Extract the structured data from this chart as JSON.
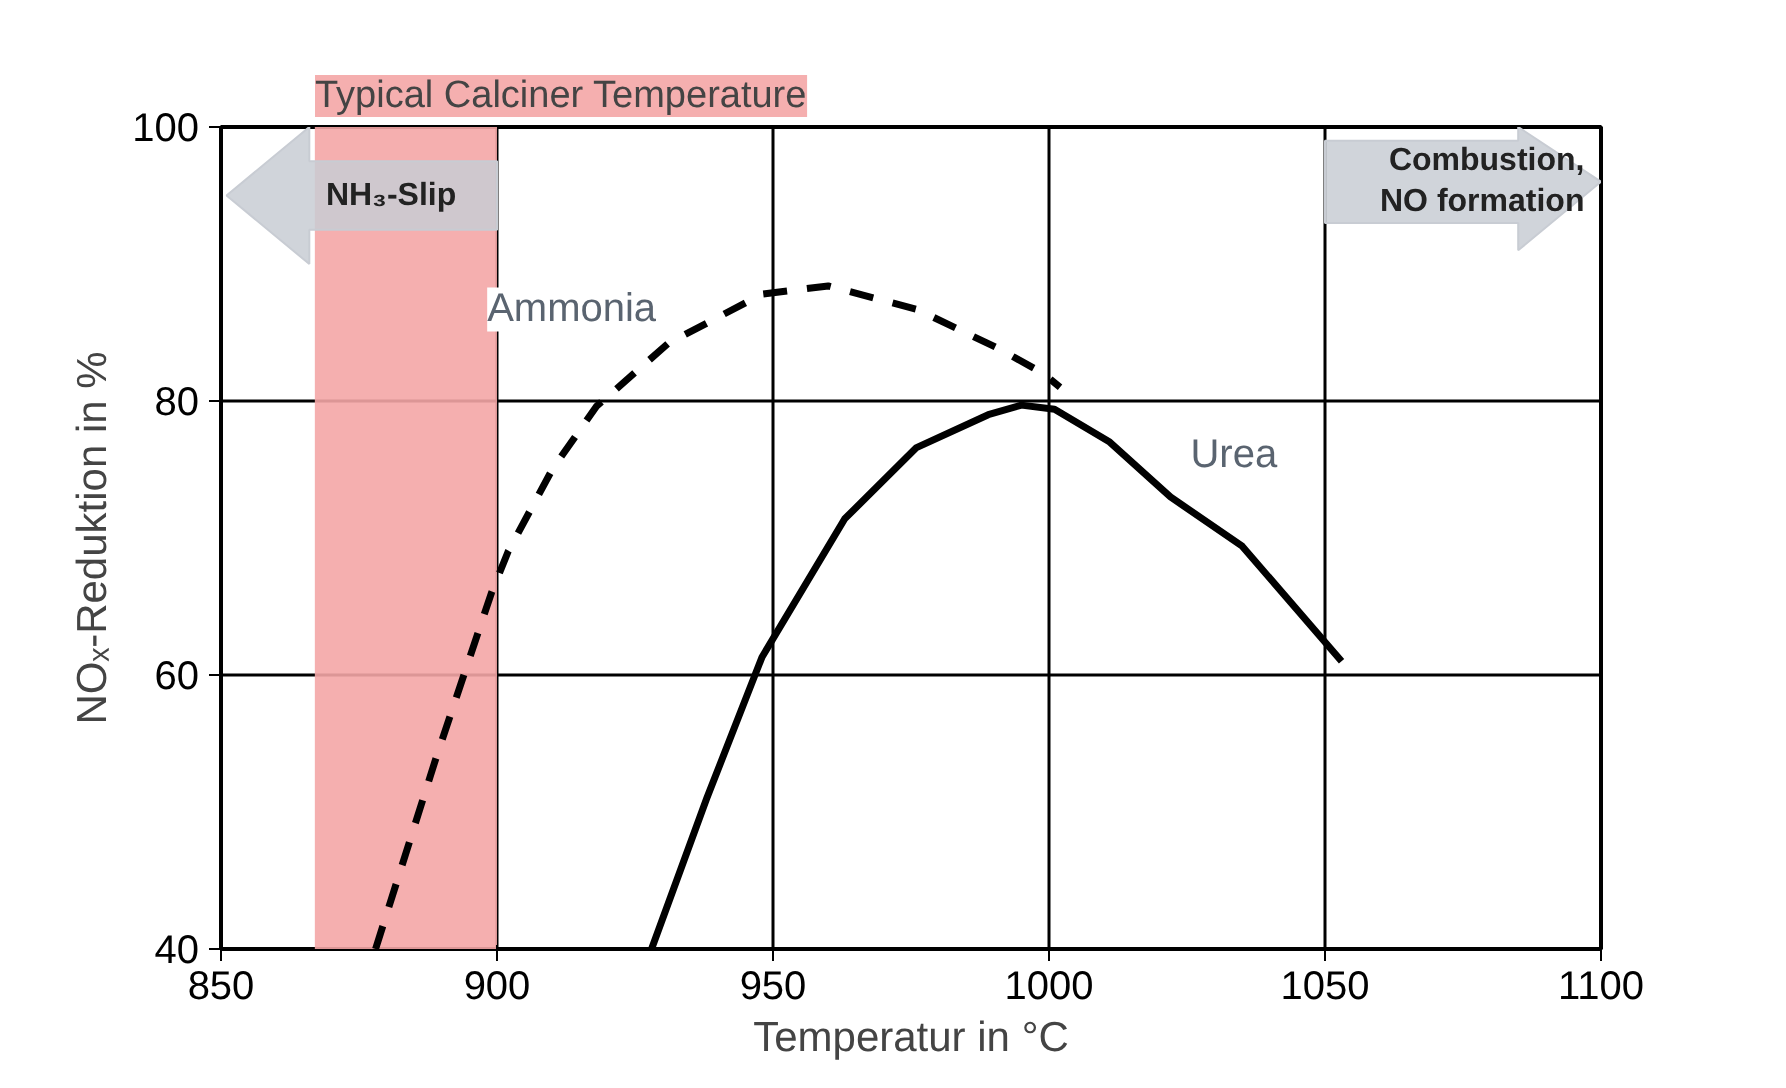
{
  "chart_data": {
    "type": "line",
    "xlabel": "Temperatur in °C",
    "ylabel": "NOₓ-Reduktion in %",
    "xlim": [
      850,
      1100
    ],
    "ylim": [
      40,
      100
    ],
    "xticks": [
      850,
      900,
      950,
      1000,
      1050,
      1100
    ],
    "yticks": [
      40,
      60,
      80,
      100
    ],
    "grid": true,
    "marker": "none",
    "series": [
      {
        "name": "Ammonia",
        "color": "#000000",
        "line_style": "dashed",
        "x": [
          878,
          889,
          899,
          902,
          910,
          918,
          931,
          948,
          960,
          976,
          991,
          999,
          1002
        ],
        "values": [
          40,
          54,
          66,
          69,
          75,
          79.6,
          84.2,
          87.8,
          88.4,
          86.7,
          83.8,
          82,
          81
        ]
      },
      {
        "name": "Urea",
        "color": "#000000",
        "line_style": "solid",
        "x": [
          928,
          938,
          948,
          963,
          976,
          989,
          995,
          1001,
          1011,
          1022,
          1035,
          1053
        ],
        "values": [
          40,
          51,
          61.3,
          71.4,
          76.6,
          79,
          79.7,
          79.4,
          77,
          73,
          69.4,
          61
        ]
      }
    ],
    "bands": [
      {
        "axis": "x",
        "from": 867,
        "to": 900,
        "label": "Typical Calciner Temperature",
        "color": "#f4a6a6"
      }
    ],
    "annotations": [
      "NH₃-Slip",
      "Combustion,\nNO formation"
    ]
  }
}
